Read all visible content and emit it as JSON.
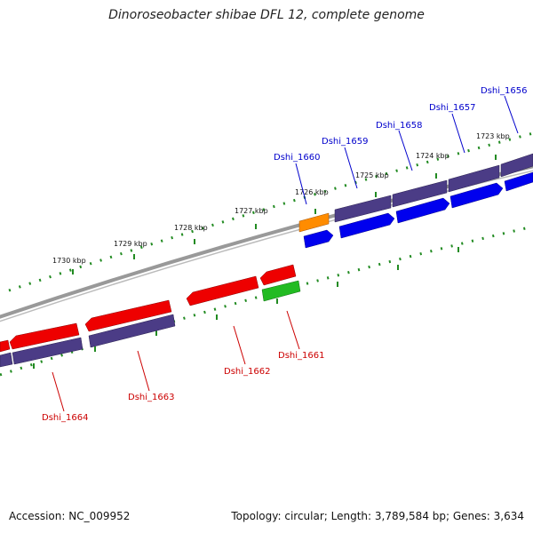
{
  "title": "Dinoroseobacter shibae DFL 12, complete genome",
  "accession": "Accession: NC_009952",
  "summary": "Topology: circular; Length: 3,789,584 bp; Genes: 3,634",
  "colors": {
    "backbone": "#888888",
    "tick": "#228B22",
    "forward_cds": "#0000EE",
    "forward_gene": "#4B3C86",
    "reverse_cds": "#EE0000",
    "reverse_gene": "#4B3C86",
    "rna": "#FF8C00",
    "misc": "#22BB22",
    "forward_label": "#0000CC",
    "reverse_label": "#CC0000"
  },
  "scale": {
    "unit": "kbp",
    "major_ticks": [
      "1723 kbp",
      "1724 kbp",
      "1725 kbp",
      "1726 kbp",
      "1727 kbp",
      "1728 kbp",
      "1729 kbp",
      "1730 kbp"
    ]
  },
  "genes": {
    "forward": [
      "Dshi_1656",
      "Dshi_1657",
      "Dshi_1658",
      "Dshi_1659",
      "Dshi_1660"
    ],
    "reverse": [
      "Dshi_1661",
      "Dshi_1662",
      "Dshi_1663",
      "Dshi_1664"
    ]
  }
}
